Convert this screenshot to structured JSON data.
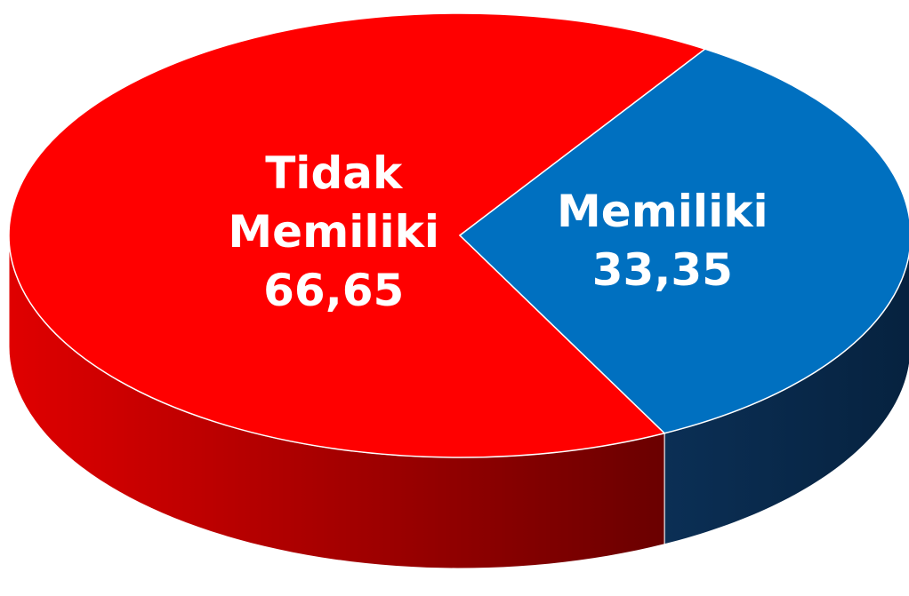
{
  "chart_data": {
    "type": "pie",
    "categories": [
      "Tidak Memiliki",
      "Memiliki"
    ],
    "values": [
      66.65,
      33.35
    ],
    "value_labels": [
      "66,65",
      "33,35"
    ],
    "colors": [
      "#ff0000",
      "#0070c0"
    ]
  }
}
